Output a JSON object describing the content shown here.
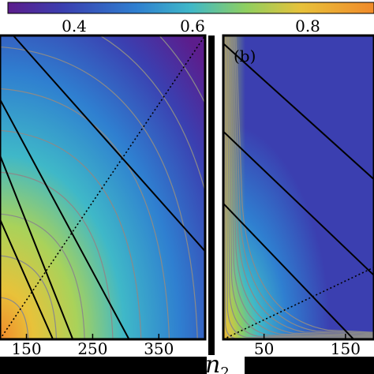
{
  "chart_data": [
    {
      "type": "heatmap",
      "panel_label": "",
      "x_ticks": [
        150,
        250,
        350
      ],
      "xlim": [
        110,
        420
      ],
      "ylim": [
        0,
        380
      ],
      "field": {
        "kind": "increasing_toward_origin",
        "center": [
          110,
          0
        ]
      },
      "solid_lines": [
        {
          "x": [
            110,
            305
          ],
          "y": [
            300,
            0
          ]
        },
        {
          "x": [
            110,
            220
          ],
          "y": [
            230,
            0
          ]
        },
        {
          "x": [
            110,
            190
          ],
          "y": [
            150,
            0
          ]
        },
        {
          "x": [
            130,
            420
          ],
          "y": [
            380,
            110
          ]
        }
      ],
      "dotted_lines": [
        {
          "x": [
            110,
            420
          ],
          "y": [
            0,
            380
          ]
        }
      ],
      "grid": false
    },
    {
      "type": "heatmap",
      "panel_label": "(b)",
      "x_ticks": [
        50,
        150
      ],
      "xlim": [
        0,
        185
      ],
      "ylim": [
        0,
        380
      ],
      "field": {
        "kind": "decreasing_from_axes",
        "center": [
          0,
          0
        ]
      },
      "solid_lines": [
        {
          "x": [
            0,
            185
          ],
          "y": [
            370,
            200
          ]
        },
        {
          "x": [
            0,
            185
          ],
          "y": [
            260,
            80
          ]
        },
        {
          "x": [
            0,
            160
          ],
          "y": [
            170,
            0
          ]
        }
      ],
      "dotted_lines": [
        {
          "x": [
            0,
            185
          ],
          "y": [
            0,
            90
          ]
        }
      ],
      "grid": false
    }
  ],
  "colorbar": {
    "ticks": [
      "0.4",
      "0.6",
      "0.8"
    ],
    "colors": [
      "#5c1d8c",
      "#3b3fb0",
      "#2f7fd0",
      "#3fb8c8",
      "#8fcf5f",
      "#e8c23a",
      "#f08a2a",
      "#e14a1c"
    ]
  },
  "x_axis_label_shared": "n",
  "x_axis_label_sub": "2"
}
